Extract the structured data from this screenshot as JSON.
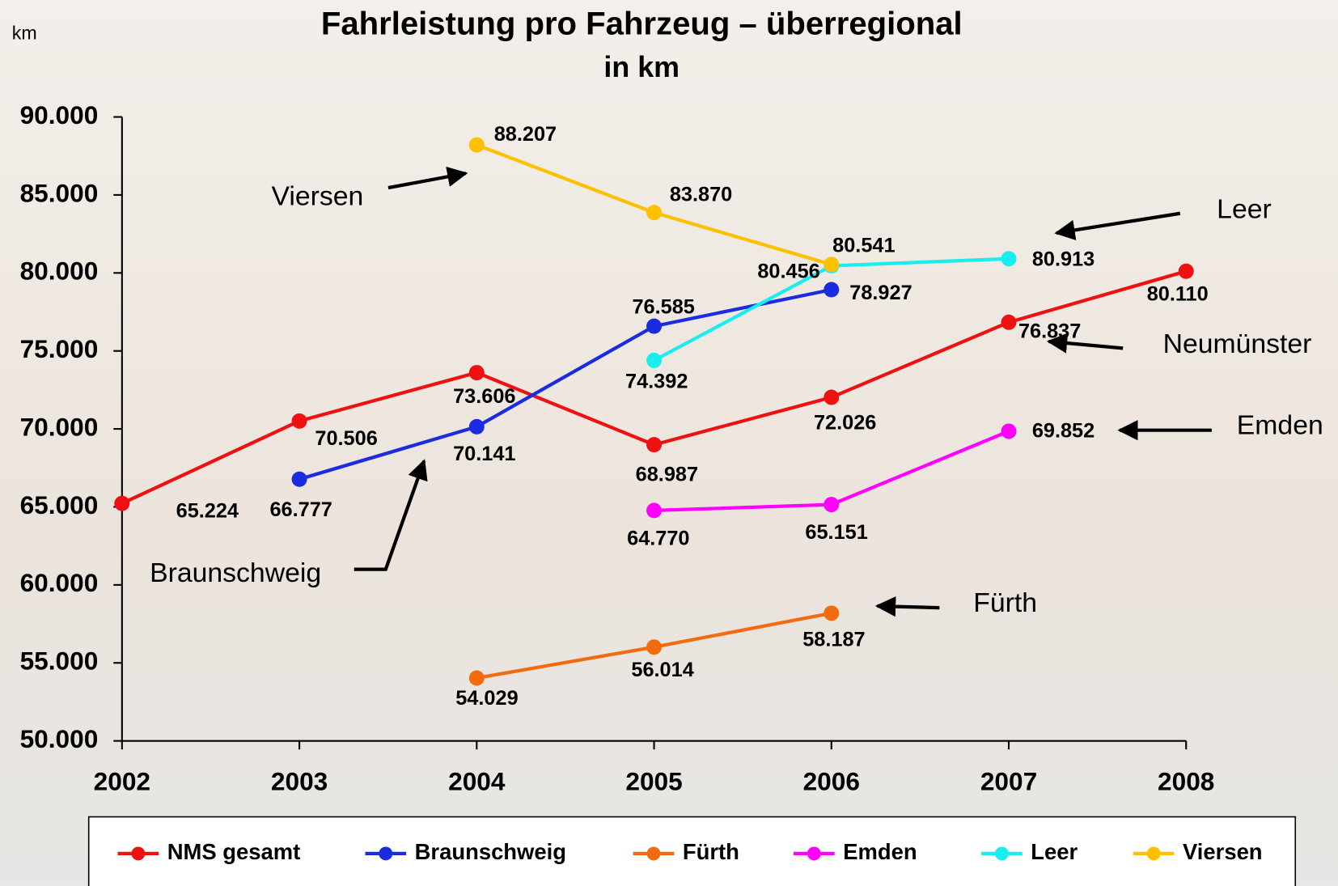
{
  "chart_data": {
    "type": "line",
    "title": "Fahrleistung pro Fahrzeug – überregional",
    "subtitle": "in km",
    "y_label": "km",
    "categories": [
      "2002",
      "2003",
      "2004",
      "2005",
      "2006",
      "2007",
      "2008"
    ],
    "ylim": [
      50000,
      90000
    ],
    "yticks": [
      {
        "value": 50000,
        "label": "50.000"
      },
      {
        "value": 55000,
        "label": "55.000"
      },
      {
        "value": 60000,
        "label": "60.000"
      },
      {
        "value": 65000,
        "label": "65.000"
      },
      {
        "value": 70000,
        "label": "70.000"
      },
      {
        "value": 75000,
        "label": "75.000"
      },
      {
        "value": 80000,
        "label": "80.000"
      },
      {
        "value": 85000,
        "label": "85.000"
      },
      {
        "value": 90000,
        "label": "90.000"
      }
    ],
    "series": [
      {
        "name": "NMS gesamt",
        "color": "#ee1111",
        "values": [
          65224,
          70506,
          73606,
          68987,
          72026,
          76837,
          80110
        ],
        "value_labels": [
          "65.224",
          "70.506",
          "73.606",
          "68.987",
          "72.026",
          "76.837",
          "80.110"
        ]
      },
      {
        "name": "Braunschweig",
        "color": "#1a2be0",
        "values": [
          null,
          66777,
          70141,
          76585,
          78927,
          null,
          null
        ],
        "value_labels": [
          null,
          "66.777",
          "70.141",
          "76.585",
          "78.927",
          null,
          null
        ]
      },
      {
        "name": "Fürth",
        "color": "#f26b10",
        "values": [
          null,
          null,
          54029,
          56014,
          58187,
          null,
          null
        ],
        "value_labels": [
          null,
          null,
          "54.029",
          "56.014",
          "58.187",
          null,
          null
        ]
      },
      {
        "name": "Emden",
        "color": "#ff00ff",
        "values": [
          null,
          null,
          null,
          64770,
          65151,
          69852,
          null
        ],
        "value_labels": [
          null,
          null,
          null,
          "64.770",
          "65.151",
          "69.852",
          null
        ]
      },
      {
        "name": "Leer",
        "color": "#19eeee",
        "values": [
          null,
          null,
          null,
          74392,
          80456,
          80913,
          null
        ],
        "value_labels": [
          null,
          null,
          null,
          "74.392",
          "80.456",
          "80.913",
          null
        ]
      },
      {
        "name": "Viersen",
        "color": "#ffc000",
        "values": [
          null,
          null,
          88207,
          83870,
          80541,
          null,
          null
        ],
        "value_labels": [
          null,
          null,
          "88.207",
          "83.870",
          "80.541",
          null,
          null
        ]
      }
    ],
    "annotations": [
      "Viersen",
      "Leer",
      "Neumünster",
      "Emden",
      "Braunschweig",
      "Fürth"
    ]
  }
}
